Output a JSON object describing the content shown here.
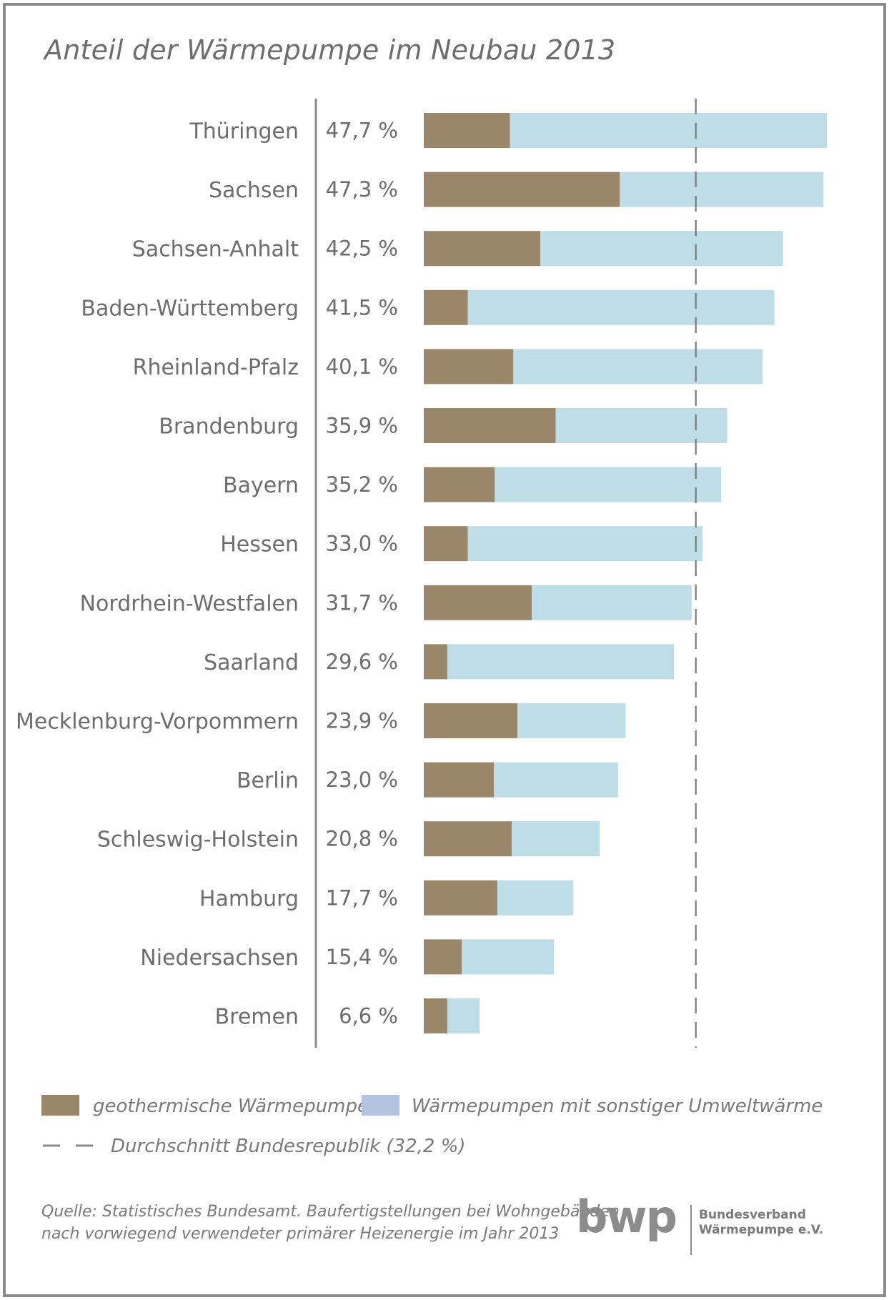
{
  "title": "Anteil der Wärmepumpe im Neubau 2013",
  "chart_data": {
    "type": "bar",
    "orientation": "horizontal",
    "stacked": true,
    "categories": [
      "Thüringen",
      "Sachsen",
      "Sachsen-Anhalt",
      "Baden-Württemberg",
      "Rheinland-Pfalz",
      "Brandenburg",
      "Bayern",
      "Hessen",
      "Nordrhein-Westfalen",
      "Saarland",
      "Mecklenburg-Vorpommern",
      "Berlin",
      "Schleswig-Holstein",
      "Hamburg",
      "Niedersachsen",
      "Bremen"
    ],
    "total_labels": [
      "47,7 %",
      "47,3 %",
      "42,5 %",
      "41,5 %",
      "40,1 %",
      "35,9 %",
      "35,2 %",
      "33,0 %",
      "31,7 %",
      "29,6 %",
      "23,9 %",
      "23,0 %",
      "20,8 %",
      "17,7 %",
      "15,4 %",
      "6,6 %"
    ],
    "totals": [
      47.7,
      47.3,
      42.5,
      41.5,
      40.1,
      35.9,
      35.2,
      33.0,
      31.7,
      29.6,
      23.9,
      23.0,
      20.8,
      17.7,
      15.4,
      6.6
    ],
    "series": [
      {
        "name": "geothermische Wärmepumpen",
        "color": "#9a8769",
        "values": [
          10.2,
          23.2,
          13.8,
          5.2,
          10.6,
          15.6,
          8.4,
          5.2,
          12.8,
          2.8,
          11.1,
          8.3,
          10.4,
          8.7,
          4.5,
          2.8
        ]
      },
      {
        "name": "Wärmepumpen mit sonstiger Umweltwärme",
        "color": "#bedde6",
        "values": [
          37.5,
          24.1,
          28.7,
          36.3,
          29.5,
          20.3,
          26.8,
          27.8,
          18.9,
          26.8,
          12.8,
          14.7,
          10.4,
          9.0,
          10.9,
          3.8
        ]
      }
    ],
    "reference_line": {
      "label": "Durchschnitt Bundesrepublik (32,2 %)",
      "value": 32.2,
      "style": "dashed"
    },
    "xlim": [
      0,
      47.7
    ],
    "grid": false,
    "legend_placement": "bottom"
  },
  "legend": {
    "legend_swatch_colors": [
      "#9a8769",
      "#b4c3e0"
    ],
    "dash_color": "#8a8a8a"
  },
  "source": {
    "line1": "Quelle: Statistisches Bundesamt. Baufertigstellungen bei Wohngebäuden",
    "line2": "nach vorwiegend verwendeter primärer Heizenergie im Jahr 2013"
  },
  "logo": {
    "wordmark": "bwp",
    "line1": "Bundesverband",
    "line2": "Wärmepumpe e.V."
  }
}
